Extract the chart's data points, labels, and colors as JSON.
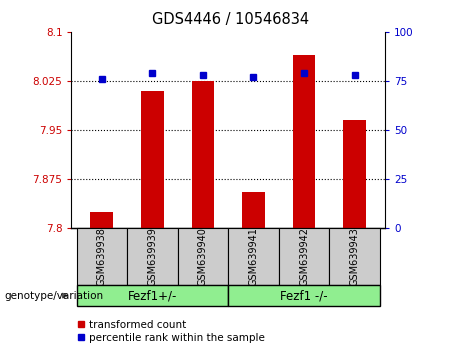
{
  "title": "GDS4446 / 10546834",
  "samples": [
    "GSM639938",
    "GSM639939",
    "GSM639940",
    "GSM639941",
    "GSM639942",
    "GSM639943"
  ],
  "red_values": [
    7.825,
    8.01,
    8.025,
    7.855,
    8.065,
    7.965
  ],
  "blue_values": [
    76,
    79,
    78,
    77,
    79,
    78
  ],
  "ylim_left": [
    7.8,
    8.1
  ],
  "ylim_right": [
    0,
    100
  ],
  "yticks_left": [
    7.8,
    7.875,
    7.95,
    8.025,
    8.1
  ],
  "yticks_right": [
    0,
    25,
    50,
    75,
    100
  ],
  "grid_values": [
    7.875,
    7.95,
    8.025
  ],
  "group1_label": "Fezf1+/-",
  "group2_label": "Fezf1 -/-",
  "genotype_label": "genotype/variation",
  "legend_red": "transformed count",
  "legend_blue": "percentile rank within the sample",
  "red_color": "#cc0000",
  "blue_color": "#0000cc",
  "bar_bottom": 7.8,
  "group_box_color": "#90ee90",
  "sample_box_color": "#cccccc"
}
